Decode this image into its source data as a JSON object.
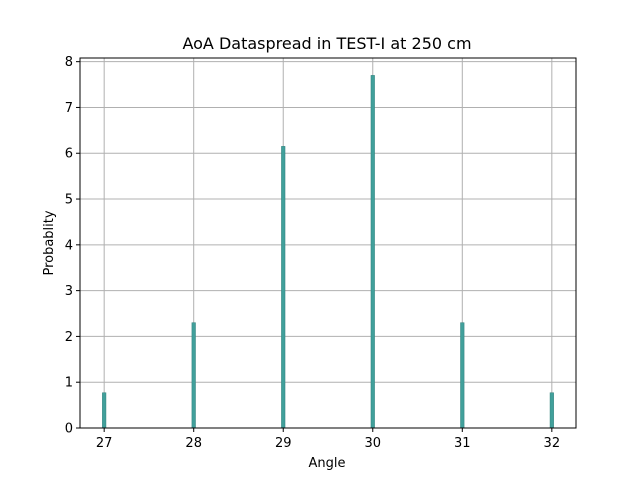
{
  "chart_data": {
    "type": "bar",
    "title": "AoA Dataspread in TEST-I at 250 cm",
    "xlabel": "Angle",
    "ylabel": "Probablity",
    "x": [
      27.0,
      28.0,
      29.0,
      30.0,
      31.0,
      32.0
    ],
    "values": [
      0.77,
      2.3,
      6.15,
      7.7,
      2.3,
      0.77
    ],
    "bar_width": 0.04,
    "xlim": [
      26.73,
      32.27
    ],
    "ylim": [
      0,
      8.08
    ],
    "xticks": [
      "27",
      "28",
      "29",
      "30",
      "31",
      "32"
    ],
    "yticks": [
      "0",
      "1",
      "2",
      "3",
      "4",
      "5",
      "6",
      "7",
      "8"
    ],
    "grid": true,
    "bar_color": "#41a09b"
  }
}
